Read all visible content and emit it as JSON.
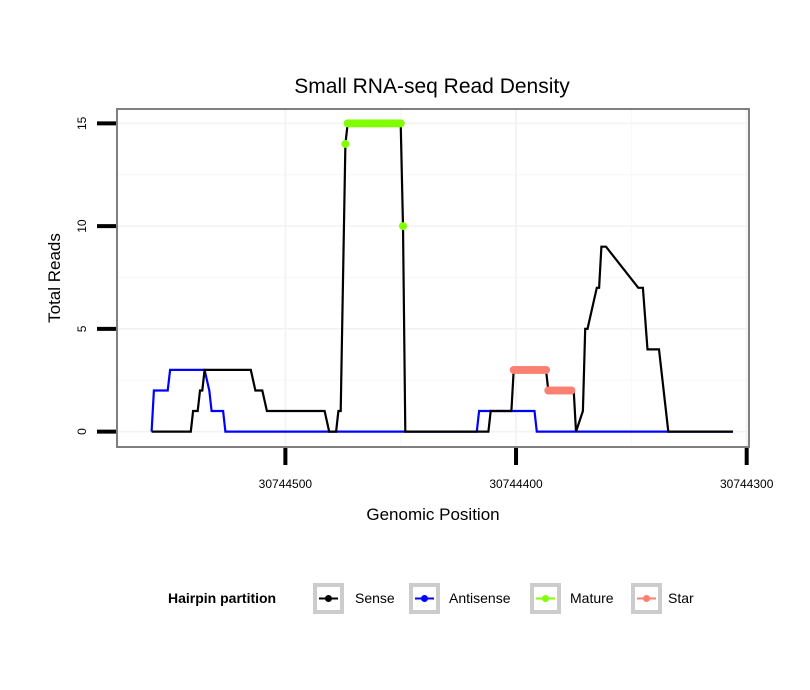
{
  "chart_data": {
    "type": "line",
    "title": "Small RNA-seq Read Density",
    "xlabel": "Genomic Position",
    "ylabel": "Total Reads",
    "x_reversed": true,
    "xlim": [
      30744573,
      30744299
    ],
    "ylim": [
      -0.75,
      15.7
    ],
    "x_ticks": [
      30744500,
      30744400,
      30744300
    ],
    "x_tick_labels": [
      "30744500",
      "30744400",
      "30744300"
    ],
    "y_ticks": [
      0,
      5,
      10,
      15
    ],
    "y_tick_labels": [
      "0",
      "5",
      "10",
      "15"
    ],
    "grid": true,
    "legend": {
      "title": "Hairpin partition",
      "position": "bottom",
      "entries": [
        {
          "label": "Sense",
          "color": "#000000"
        },
        {
          "label": "Antisense",
          "color": "#0000FF"
        },
        {
          "label": "Mature",
          "color": "#7FFF00"
        },
        {
          "label": "Star",
          "color": "#FA8072"
        }
      ]
    },
    "series": [
      {
        "name": "Sense",
        "color": "#000000",
        "style": "line",
        "x": [
          30744558,
          30744541,
          30744540,
          30744538,
          30744537,
          30744536,
          30744535,
          30744515,
          30744513,
          30744510,
          30744508,
          30744483,
          30744481,
          30744478,
          30744477,
          30744476,
          30744474,
          30744473,
          30744450,
          30744449,
          30744448,
          30744412,
          30744411,
          30744402,
          30744401,
          30744387,
          30744386,
          30744375,
          30744374,
          30744371,
          30744370,
          30744369,
          30744365,
          30744364,
          30744363,
          30744361,
          30744347,
          30744345,
          30744343,
          30744342,
          30744338,
          30744334,
          30744306
        ],
        "y": [
          0,
          0,
          1,
          1,
          2,
          2,
          3,
          3,
          2,
          2,
          1,
          1,
          0,
          0,
          1,
          1,
          14,
          15,
          15,
          10,
          0,
          0,
          1,
          1,
          3,
          3,
          2,
          2,
          0,
          1,
          5,
          5,
          7,
          7,
          9,
          9,
          7,
          7,
          4,
          4,
          4,
          0,
          0
        ]
      },
      {
        "name": "Antisense",
        "color": "#0000FF",
        "style": "line",
        "x": [
          30744558,
          30744557,
          30744551,
          30744550,
          30744535,
          30744533,
          30744532,
          30744527,
          30744526,
          30744417,
          30744416,
          30744392,
          30744391,
          30744306
        ],
        "y": [
          0,
          2,
          2,
          3,
          3,
          2,
          1,
          1,
          0,
          0,
          1,
          1,
          0,
          0
        ]
      },
      {
        "name": "Mature",
        "color": "#7FFF00",
        "style": "points",
        "x": [
          30744474,
          30744473,
          30744472,
          30744471,
          30744470,
          30744469,
          30744468,
          30744467,
          30744466,
          30744465,
          30744464,
          30744463,
          30744462,
          30744461,
          30744460,
          30744459,
          30744458,
          30744457,
          30744456,
          30744455,
          30744454,
          30744453,
          30744452,
          30744451,
          30744450,
          30744449
        ],
        "y": [
          14,
          15,
          15,
          15,
          15,
          15,
          15,
          15,
          15,
          15,
          15,
          15,
          15,
          15,
          15,
          15,
          15,
          15,
          15,
          15,
          15,
          15,
          15,
          15,
          15,
          10
        ]
      },
      {
        "name": "Star",
        "color": "#FA8072",
        "style": "points",
        "x": [
          30744401,
          30744400,
          30744399,
          30744398,
          30744397,
          30744396,
          30744395,
          30744394,
          30744393,
          30744392,
          30744391,
          30744390,
          30744389,
          30744388,
          30744387,
          30744386,
          30744385,
          30744384,
          30744383,
          30744382,
          30744381,
          30744380,
          30744379,
          30744378,
          30744377,
          30744376
        ],
        "y": [
          3,
          3,
          3,
          3,
          3,
          3,
          3,
          3,
          3,
          3,
          3,
          3,
          3,
          3,
          3,
          2,
          2,
          2,
          2,
          2,
          2,
          2,
          2,
          2,
          2,
          2
        ]
      }
    ]
  }
}
